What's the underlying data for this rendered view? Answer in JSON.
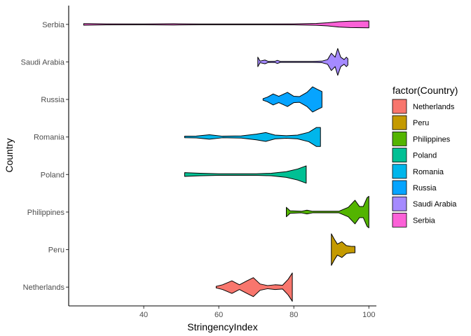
{
  "chart_data": {
    "type": "violin",
    "xlabel": "StringencyIndex",
    "ylabel": "Country",
    "xlim": [
      20,
      102
    ],
    "x_ticks": [
      40,
      60,
      80,
      100
    ],
    "grid": false,
    "legend_placement": "right",
    "legend_title": "factor(Country)",
    "categories": [
      "Netherlands",
      "Peru",
      "Philippines",
      "Poland",
      "Romania",
      "Russia",
      "Saudi Arabia",
      "Serbia"
    ],
    "series": [
      {
        "name": "Netherlands",
        "color": "#F8766D",
        "range": [
          59.3,
          79.6
        ],
        "profile": [
          [
            59.3,
            0.05
          ],
          [
            61,
            0.15
          ],
          [
            63.5,
            0.4
          ],
          [
            65.5,
            0.15
          ],
          [
            67.5,
            0.4
          ],
          [
            69.2,
            0.6
          ],
          [
            71,
            0.2
          ],
          [
            73,
            0.1
          ],
          [
            75,
            0.15
          ],
          [
            77,
            0.12
          ],
          [
            78.5,
            0.5
          ],
          [
            79.6,
            0.9
          ]
        ]
      },
      {
        "name": "Peru",
        "color": "#C49A00",
        "range": [
          90,
          96.3
        ],
        "profile": [
          [
            90,
            1.0
          ],
          [
            90.8,
            0.65
          ],
          [
            91.6,
            0.35
          ],
          [
            92.8,
            0.5
          ],
          [
            94,
            0.25
          ],
          [
            95.5,
            0.2
          ],
          [
            96.3,
            0.2
          ]
        ]
      },
      {
        "name": "Philippines",
        "color": "#53B400",
        "range": [
          78,
          100
        ],
        "profile": [
          [
            78,
            0.3
          ],
          [
            79,
            0.08
          ],
          [
            82,
            0.05
          ],
          [
            83.5,
            0.12
          ],
          [
            85,
            0.05
          ],
          [
            92,
            0.05
          ],
          [
            94.5,
            0.3
          ],
          [
            96.3,
            0.75
          ],
          [
            97.5,
            0.35
          ],
          [
            98.5,
            0.35
          ],
          [
            99.5,
            0.9
          ],
          [
            100,
            1.0
          ]
        ]
      },
      {
        "name": "Poland",
        "color": "#00C094",
        "range": [
          50.9,
          83.3
        ],
        "profile": [
          [
            50.9,
            0.12
          ],
          [
            55,
            0.08
          ],
          [
            60,
            0.05
          ],
          [
            65,
            0.05
          ],
          [
            70,
            0.05
          ],
          [
            74,
            0.08
          ],
          [
            78,
            0.18
          ],
          [
            81,
            0.35
          ],
          [
            83.3,
            0.55
          ]
        ]
      },
      {
        "name": "Romania",
        "color": "#00B6EB",
        "range": [
          50.9,
          87.1
        ],
        "profile": [
          [
            50.9,
            0.05
          ],
          [
            54,
            0.06
          ],
          [
            57.5,
            0.14
          ],
          [
            61,
            0.05
          ],
          [
            66,
            0.07
          ],
          [
            70,
            0.18
          ],
          [
            72.5,
            0.28
          ],
          [
            75,
            0.12
          ],
          [
            78,
            0.08
          ],
          [
            81,
            0.12
          ],
          [
            84,
            0.3
          ],
          [
            86,
            0.6
          ],
          [
            87.1,
            0.6
          ]
        ]
      },
      {
        "name": "Russia",
        "color": "#06A4FF",
        "range": [
          71.8,
          87.5
        ],
        "profile": [
          [
            71.8,
            0.05
          ],
          [
            73,
            0.15
          ],
          [
            74.5,
            0.35
          ],
          [
            76,
            0.2
          ],
          [
            78.3,
            0.45
          ],
          [
            80,
            0.2
          ],
          [
            81.5,
            0.18
          ],
          [
            83.5,
            0.45
          ],
          [
            85,
            0.8
          ],
          [
            86.2,
            0.65
          ],
          [
            87.5,
            0.5
          ]
        ]
      },
      {
        "name": "Saudi Arabia",
        "color": "#A58AFF",
        "range": [
          70.4,
          94.4
        ],
        "profile": [
          [
            70.4,
            0.3
          ],
          [
            71,
            0.05
          ],
          [
            72.3,
            0.12
          ],
          [
            73.2,
            0.03
          ],
          [
            75,
            0.04
          ],
          [
            75.6,
            0.1
          ],
          [
            76.4,
            0.03
          ],
          [
            85,
            0.03
          ],
          [
            87.5,
            0.05
          ],
          [
            89,
            0.15
          ],
          [
            90,
            0.55
          ],
          [
            91,
            0.3
          ],
          [
            91.7,
            0.85
          ],
          [
            92.5,
            0.3
          ],
          [
            93.4,
            0.15
          ],
          [
            94,
            0.3
          ],
          [
            94.4,
            0.2
          ]
        ]
      },
      {
        "name": "Serbia",
        "color": "#FB61D7",
        "range": [
          24,
          100
        ],
        "profile": [
          [
            24,
            0.05
          ],
          [
            30,
            0.03
          ],
          [
            40,
            0.02
          ],
          [
            48,
            0.04
          ],
          [
            55,
            0.02
          ],
          [
            70,
            0.02
          ],
          [
            80,
            0.03
          ],
          [
            86,
            0.06
          ],
          [
            89,
            0.1
          ],
          [
            92,
            0.17
          ],
          [
            95,
            0.2
          ],
          [
            100,
            0.22
          ]
        ]
      }
    ]
  }
}
